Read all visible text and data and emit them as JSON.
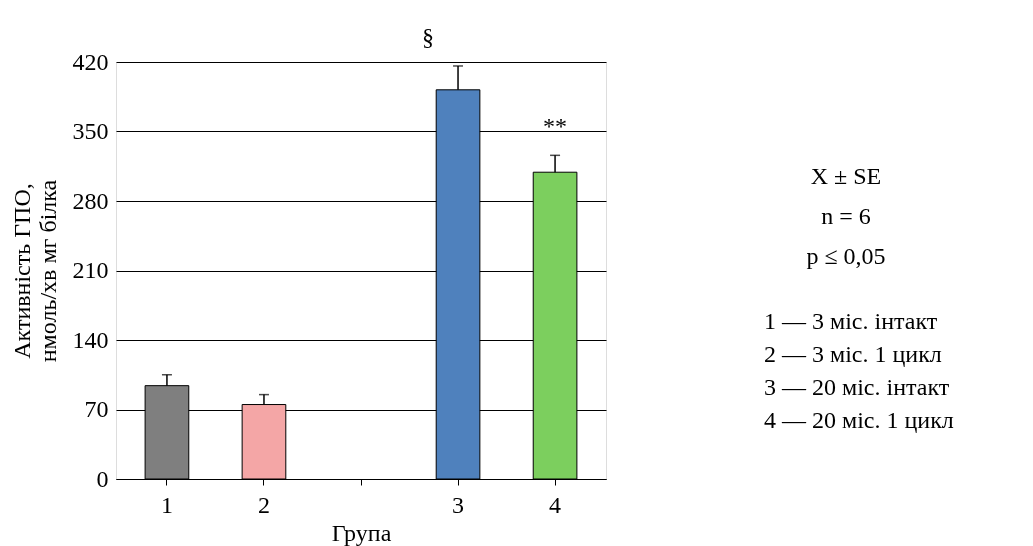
{
  "chart_data": {
    "type": "bar",
    "xlabel": "Група",
    "ylabel": "Активність ГПО,\nнмоль/хв мг білка",
    "categories": [
      "1",
      "2",
      null,
      "3",
      "4"
    ],
    "values": [
      94,
      75,
      null,
      392,
      309
    ],
    "colors": [
      "#7f7f7f",
      "#f4a6a6",
      null,
      "#4f81bd",
      "#7ccf5e"
    ],
    "errors": [
      [
        94,
        105
      ],
      [
        75,
        85
      ],
      null,
      [
        392,
        416
      ],
      [
        309,
        326
      ]
    ],
    "ylim": [
      0,
      420
    ],
    "yticks": [
      0,
      70,
      140,
      210,
      280,
      350,
      420
    ],
    "grid": "y",
    "annotations": [
      {
        "text": "§",
        "x": "3",
        "y": 416
      },
      {
        "text": "**",
        "x": "4",
        "y": 326
      },
      "X ± SE",
      "n  =  6",
      "p ≤ 0,05",
      "1  — 3 міс. інтакт",
      "2  — 3 міс. 1 цикл",
      "3  — 20 міс. інтакт",
      "4  — 20 міс. 1 цикл"
    ]
  }
}
